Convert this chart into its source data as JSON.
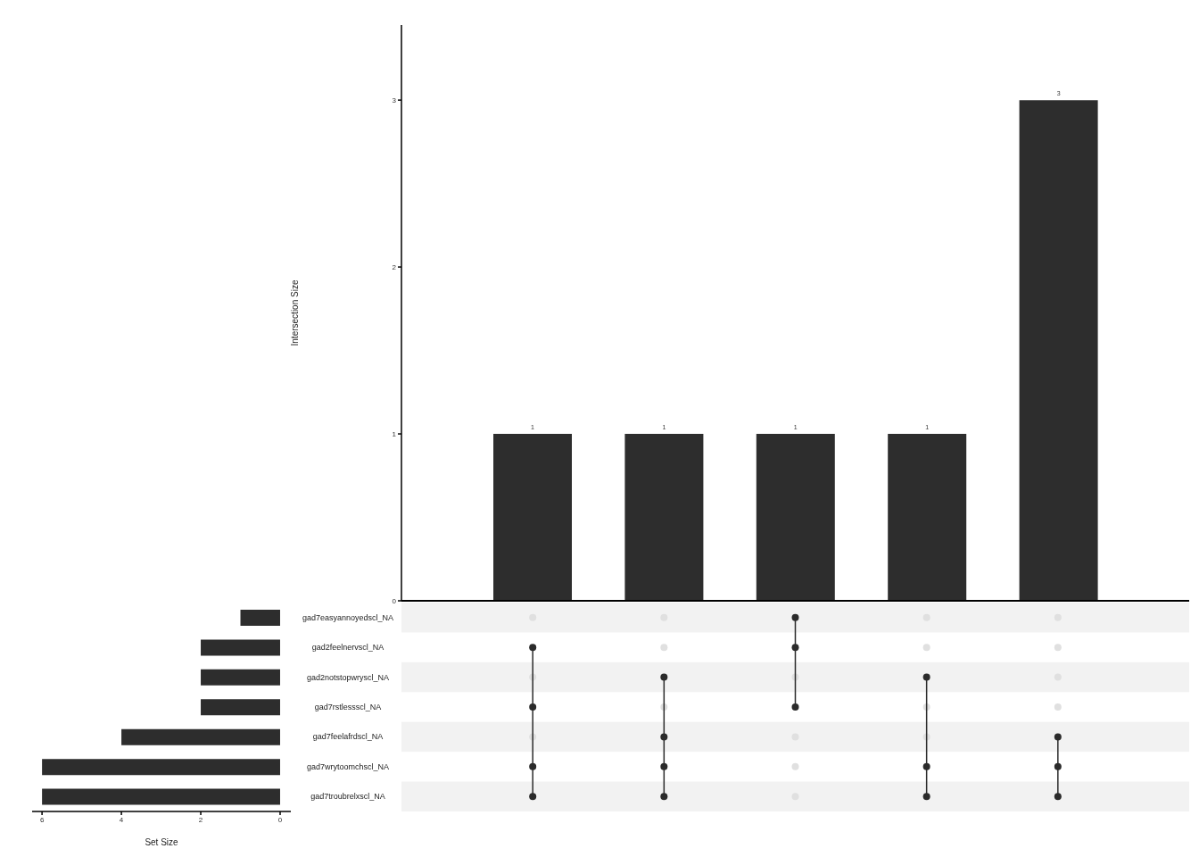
{
  "chart_data": [
    {
      "type": "bar",
      "ylabel": "Intersection Size",
      "categories": [
        null,
        null,
        null,
        null,
        null
      ],
      "values": [
        1,
        1,
        1,
        1,
        3
      ],
      "color": "#2d2d2d",
      "ylim": [
        0,
        3.45
      ],
      "yticks": [
        0,
        1,
        2,
        3
      ],
      "data_labels": true
    },
    {
      "type": "bar",
      "orientation": "horizontal",
      "xlabel": "Set Size",
      "categories": [
        "gad7easyannoyedscl_NA",
        "gad2feelnervscl_NA",
        "gad2notstopwryscl_NA",
        "gad7rstlessscl_NA",
        "gad7feelafrdscl_NA",
        "gad7wrytoomchscl_NA",
        "gad7troubrelxscl_NA"
      ],
      "values": [
        1,
        2,
        2,
        2,
        4,
        6,
        6
      ],
      "color": "#2d2d2d",
      "xlim": [
        6.25,
        -0.27
      ],
      "xticks": [
        6,
        4,
        2,
        0
      ]
    }
  ]
}
